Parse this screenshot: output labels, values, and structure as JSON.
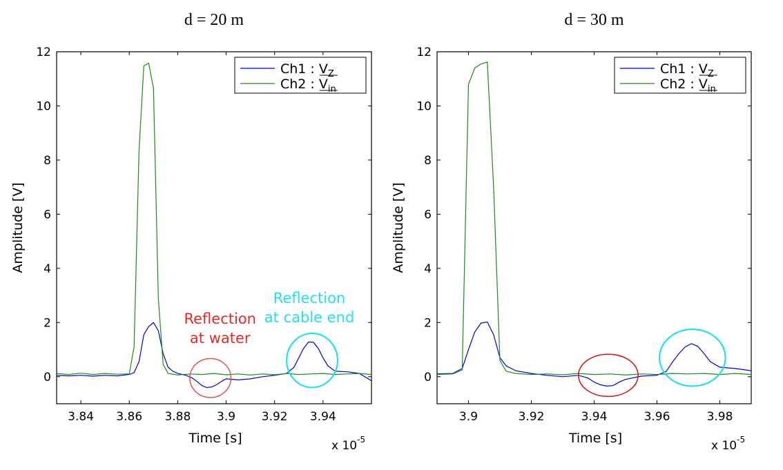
{
  "chart_data": [
    {
      "type": "line",
      "title": "d = 20 m",
      "xlabel": "Time [s]",
      "ylabel": "Amplitude [V]",
      "x_multiplier": "x 10",
      "x_multiplier_exp": "-5",
      "xlim": [
        3.83,
        3.96
      ],
      "ylim": [
        -1,
        12
      ],
      "xticks": [
        3.84,
        3.86,
        3.88,
        3.9,
        3.92,
        3.94
      ],
      "xtick_labels": [
        "3.84",
        "3.86",
        "3.88",
        "3.9",
        "3.92",
        "3.94"
      ],
      "yticks": [
        0,
        2,
        4,
        6,
        8,
        10,
        12
      ],
      "ytick_labels": [
        "0",
        "2",
        "4",
        "6",
        "8",
        "10",
        "12"
      ],
      "legend_position": "top-right",
      "series": [
        {
          "name": "Ch1 : V_Z",
          "legend_main": "Ch1 : V",
          "legend_sub": "Z",
          "color": "#0000cc",
          "x": [
            3.83,
            3.835,
            3.84,
            3.845,
            3.85,
            3.855,
            3.86,
            3.862,
            3.864,
            3.866,
            3.868,
            3.87,
            3.872,
            3.874,
            3.876,
            3.878,
            3.88,
            3.882,
            3.884,
            3.886,
            3.888,
            3.89,
            3.892,
            3.894,
            3.896,
            3.898,
            3.9,
            3.905,
            3.91,
            3.915,
            3.92,
            3.925,
            3.928,
            3.93,
            3.932,
            3.934,
            3.936,
            3.938,
            3.94,
            3.942,
            3.945,
            3.95,
            3.955,
            3.96
          ],
          "y": [
            0.05,
            0.03,
            0.05,
            0.02,
            0.05,
            0.03,
            0.08,
            0.15,
            0.55,
            1.55,
            1.85,
            2.0,
            1.7,
            0.85,
            0.35,
            0.2,
            0.12,
            0.08,
            0.03,
            -0.05,
            -0.18,
            -0.33,
            -0.4,
            -0.38,
            -0.3,
            -0.18,
            -0.08,
            -0.12,
            -0.08,
            0.0,
            0.05,
            0.12,
            0.35,
            0.7,
            1.05,
            1.28,
            1.27,
            1.05,
            0.7,
            0.4,
            0.2,
            0.18,
            0.12,
            -0.15
          ]
        },
        {
          "name": "Ch2 : V_in",
          "legend_main": "Ch2 : V",
          "legend_sub": "in",
          "color": "#1a8a1a",
          "x": [
            3.83,
            3.835,
            3.84,
            3.845,
            3.85,
            3.855,
            3.86,
            3.862,
            3.864,
            3.866,
            3.868,
            3.87,
            3.872,
            3.874,
            3.876,
            3.88,
            3.885,
            3.89,
            3.895,
            3.9,
            3.905,
            3.91,
            3.915,
            3.92,
            3.925,
            3.93,
            3.935,
            3.94,
            3.945,
            3.95,
            3.955,
            3.96
          ],
          "y": [
            0.12,
            0.08,
            0.13,
            0.08,
            0.12,
            0.09,
            0.1,
            1.1,
            8.3,
            11.48,
            11.58,
            10.65,
            2.9,
            0.45,
            0.12,
            0.06,
            0.1,
            0.08,
            0.12,
            0.07,
            0.1,
            0.06,
            0.1,
            0.07,
            0.12,
            0.08,
            0.1,
            0.12,
            0.08,
            0.1,
            0.12,
            0.08
          ]
        }
      ],
      "annotations": [
        {
          "text_lines": [
            "Reflection",
            "at water"
          ],
          "color": "#e02a2a",
          "circle_color": "#e05050",
          "center": [
            3.8935,
            -0.05
          ],
          "rx": 0.0085,
          "ry": 0.72
        },
        {
          "text_lines": [
            "Reflection",
            "at cable end"
          ],
          "color": "#22e0e8",
          "circle_color": "#22e0e8",
          "center": [
            3.9355,
            0.6
          ],
          "rx": 0.0105,
          "ry": 1.0
        }
      ]
    },
    {
      "type": "line",
      "title": "d = 30 m",
      "xlabel": "Time [s]",
      "ylabel": "Amplitude [V]",
      "x_multiplier": "x 10",
      "x_multiplier_exp": "-5",
      "xlim": [
        3.89,
        3.99
      ],
      "ylim": [
        -1,
        12
      ],
      "xticks": [
        3.9,
        3.92,
        3.94,
        3.96,
        3.98
      ],
      "xtick_labels": [
        "3.9",
        "3.92",
        "3.94",
        "3.96",
        "3.98"
      ],
      "yticks": [
        0,
        2,
        4,
        6,
        8,
        10,
        12
      ],
      "ytick_labels": [
        "0",
        "2",
        "4",
        "6",
        "8",
        "10",
        "12"
      ],
      "legend_position": "top-right",
      "series": [
        {
          "name": "Ch1 : V_Z",
          "legend_main": "Ch1 : V",
          "legend_sub": "Z",
          "color": "#0000cc",
          "x": [
            3.89,
            3.895,
            3.898,
            3.9,
            3.902,
            3.904,
            3.906,
            3.908,
            3.91,
            3.912,
            3.915,
            3.92,
            3.925,
            3.93,
            3.935,
            3.938,
            3.94,
            3.942,
            3.944,
            3.946,
            3.948,
            3.95,
            3.955,
            3.96,
            3.963,
            3.965,
            3.967,
            3.969,
            3.971,
            3.973,
            3.975,
            3.977,
            3.98,
            3.985,
            3.99
          ],
          "y": [
            0.1,
            0.12,
            0.3,
            1.0,
            1.65,
            1.98,
            2.02,
            1.55,
            0.7,
            0.4,
            0.22,
            0.12,
            0.05,
            0.0,
            0.05,
            -0.05,
            -0.2,
            -0.3,
            -0.35,
            -0.33,
            -0.2,
            -0.1,
            0.02,
            0.05,
            0.2,
            0.55,
            0.85,
            1.1,
            1.22,
            1.12,
            0.85,
            0.55,
            0.35,
            0.3,
            0.22
          ]
        },
        {
          "name": "Ch2 : V_in",
          "legend_main": "Ch2 : V",
          "legend_sub": "in",
          "color": "#1a8a1a",
          "x": [
            3.89,
            3.895,
            3.898,
            3.9,
            3.902,
            3.904,
            3.906,
            3.908,
            3.91,
            3.912,
            3.915,
            3.92,
            3.925,
            3.93,
            3.935,
            3.94,
            3.945,
            3.95,
            3.955,
            3.96,
            3.965,
            3.97,
            3.975,
            3.98,
            3.985,
            3.99
          ],
          "y": [
            0.08,
            0.1,
            0.25,
            10.8,
            11.4,
            11.55,
            11.62,
            7.0,
            0.6,
            0.2,
            0.12,
            0.08,
            0.1,
            0.07,
            0.12,
            0.08,
            0.1,
            0.06,
            0.1,
            0.08,
            0.12,
            0.1,
            0.12,
            0.08,
            0.12,
            0.08
          ]
        }
      ],
      "annotations": [
        {
          "text_lines": [],
          "color": "#e02a2a",
          "circle_color": "#cc1111",
          "center": [
            3.9445,
            0.05
          ],
          "rx": 0.0095,
          "ry": 0.78
        },
        {
          "text_lines": [],
          "color": "#22e0e8",
          "circle_color": "#22e0e8",
          "center": [
            3.9713,
            0.7
          ],
          "rx": 0.0105,
          "ry": 1.05
        }
      ]
    }
  ]
}
